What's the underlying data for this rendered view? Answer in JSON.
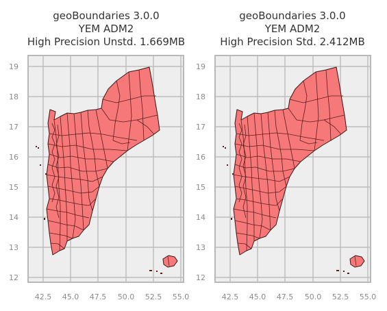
{
  "maps": [
    {
      "title_lines": [
        "geoBoundaries 3.0.0",
        "YEM ADM2",
        "High Precision Unstd. 1.669MB"
      ]
    },
    {
      "title_lines": [
        "geoBoundaries 3.0.0",
        "YEM ADM2",
        "High Precision Std. 2.412MB"
      ]
    }
  ],
  "axes": {
    "x_ticks": [
      "42.5",
      "45.0",
      "47.5",
      "50.0",
      "52.5",
      "55.0"
    ],
    "y_ticks": [
      "12",
      "13",
      "14",
      "15",
      "16",
      "17",
      "18",
      "19"
    ]
  },
  "colors": {
    "fill": "#f77878",
    "edge": "#3a1515",
    "background": "#eeeeee",
    "grid": "#bdbdbd"
  }
}
